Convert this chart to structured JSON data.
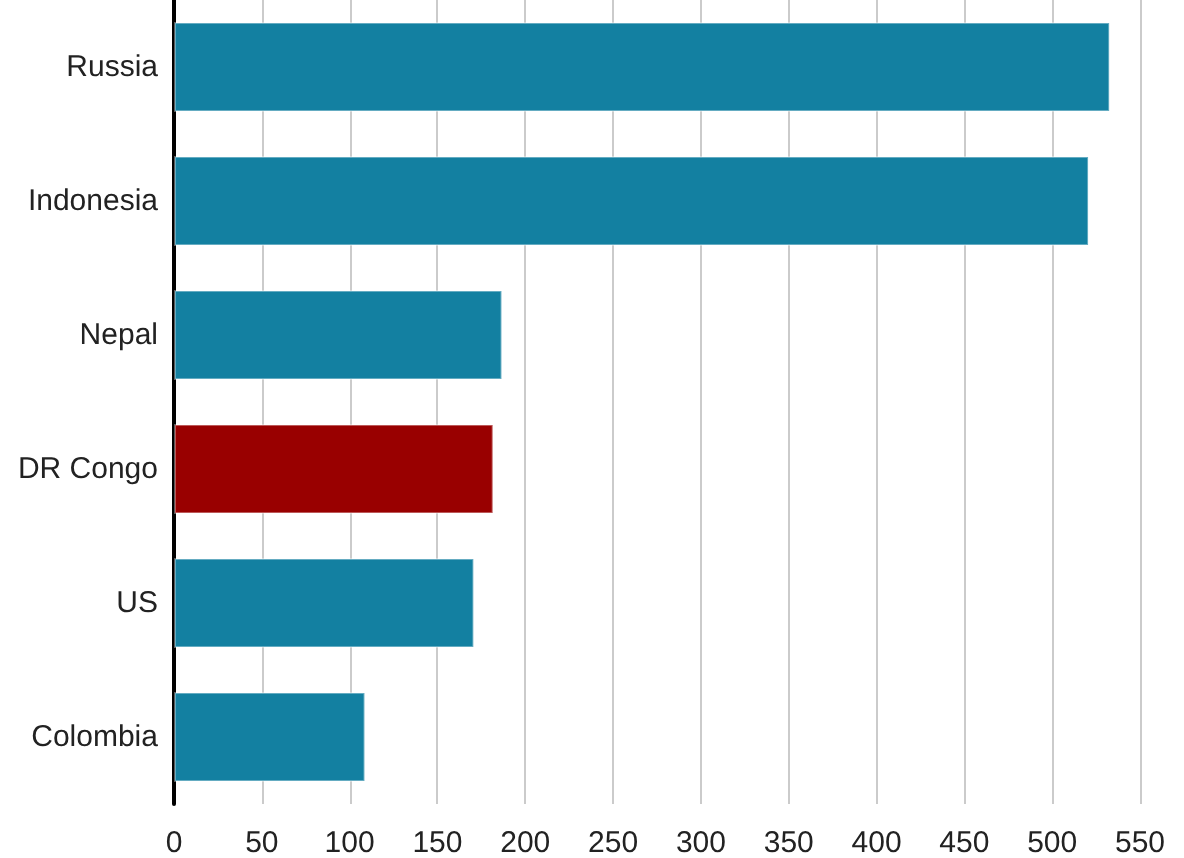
{
  "chart_data": {
    "type": "bar",
    "orientation": "horizontal",
    "categories": [
      "Russia",
      "Indonesia",
      "Nepal",
      "DR Congo",
      "US",
      "Colombia"
    ],
    "values": [
      533,
      521,
      187,
      182,
      171,
      109
    ],
    "colors": [
      "#1380a1",
      "#1380a1",
      "#1380a1",
      "#990000",
      "#1380a1",
      "#1380a1"
    ],
    "xlim": [
      0,
      550
    ],
    "xticks": [
      0,
      50,
      100,
      150,
      200,
      250,
      300,
      350,
      400,
      450,
      500,
      550
    ],
    "grid": "x"
  }
}
